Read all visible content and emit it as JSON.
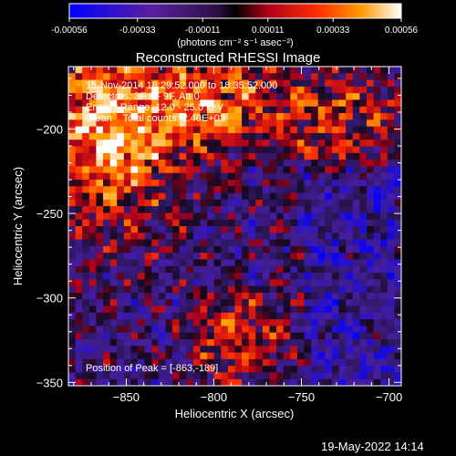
{
  "colorbar": {
    "tick_labels": [
      "-0.00056",
      "-0.00033",
      "-0.00011",
      "0.00011",
      "0.00033",
      "0.00056"
    ],
    "tick_values": [
      -0.00056,
      -0.00033,
      -0.00011,
      0.00011,
      0.00033,
      0.00056
    ],
    "range": [
      -0.00056,
      0.00056
    ],
    "units_label": "(photons cm⁻² s⁻¹ asec⁻²)"
  },
  "chart_data": {
    "type": "heatmap",
    "title": "Reconstructed RHESSI Image",
    "xlabel": "Heliocentric X (arcsec)",
    "ylabel": "Heliocentric Y (arcsec)",
    "xlim": [
      -883,
      -693
    ],
    "ylim": [
      -352,
      -163
    ],
    "x_ticks": [
      -850,
      -800,
      -750,
      -700
    ],
    "x_tick_labels": [
      "−850",
      "−800",
      "−750",
      "−700"
    ],
    "y_ticks": [
      -200,
      -250,
      -300,
      -350
    ],
    "y_tick_labels": [
      "−200",
      "−250",
      "−300",
      "−350"
    ],
    "annotations": [
      "15-Nov-2014 18:29:52.000 to 18:35:52.000",
      "Detectors: 3F 6F 9F, Att 0",
      "Energy Range: 12.0 - 25.0 keV",
      "Clean    Total counts: 2.40E+03"
    ],
    "peak_label": "Position of Peak = [-863,-189]",
    "peak_position": [
      -863,
      -189
    ],
    "grid": false,
    "colormap": [
      "#0000ff",
      "#5a1fa0",
      "#3a1f6a",
      "#000000",
      "#b0001a",
      "#ff3000",
      "#ff9a00",
      "#ffffff"
    ]
  },
  "footer": {
    "date": "19-May-2022 14:14"
  }
}
